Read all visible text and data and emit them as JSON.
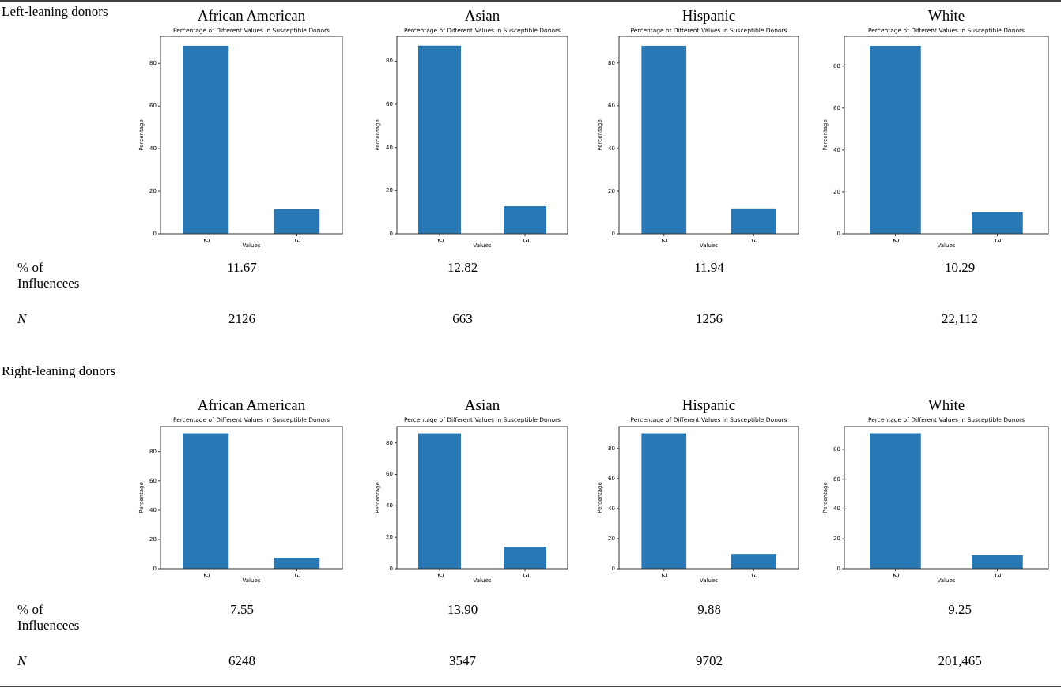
{
  "chart_data": [
    {
      "type": "other",
      "annotations": [
        "Left-leaning donors",
        "% of Influencees",
        "N",
        "Right-leaning donors",
        "% of Influencees",
        "N"
      ]
    },
    {
      "type": "bar",
      "title": "African American",
      "subtitle": "Percentage of Different Values in Susceptible Donors",
      "xlabel": "Values",
      "ylabel": "Percentage",
      "categories": [
        "2",
        "3"
      ],
      "values": [
        88.3,
        11.7
      ],
      "color": "#2878b5",
      "ylim": [
        0,
        92.7
      ],
      "yticks": [
        0,
        20,
        40,
        60,
        80
      ],
      "annotations": [
        "11.67",
        "2126"
      ]
    },
    {
      "type": "bar",
      "title": "Asian",
      "subtitle": "Percentage of Different Values in Susceptible Donors",
      "xlabel": "Values",
      "ylabel": "Percentage",
      "categories": [
        "2",
        "3"
      ],
      "values": [
        87.2,
        12.8
      ],
      "color": "#2878b5",
      "ylim": [
        0,
        91.5
      ],
      "yticks": [
        0,
        20,
        40,
        60,
        80
      ],
      "annotations": [
        "12.82",
        "663"
      ]
    },
    {
      "type": "bar",
      "title": "Hispanic",
      "subtitle": "Percentage of Different Values in Susceptible Donors",
      "xlabel": "Values",
      "ylabel": "Percentage",
      "categories": [
        "2",
        "3"
      ],
      "values": [
        88.1,
        11.9
      ],
      "color": "#2878b5",
      "ylim": [
        0,
        92.5
      ],
      "yticks": [
        0,
        20,
        40,
        60,
        80
      ],
      "annotations": [
        "11.94",
        "1256"
      ]
    },
    {
      "type": "bar",
      "title": "White",
      "subtitle": "Percentage of Different Values in Susceptible Donors",
      "xlabel": "Values",
      "ylabel": "Percentage",
      "categories": [
        "2",
        "3"
      ],
      "values": [
        89.7,
        10.3
      ],
      "color": "#2878b5",
      "ylim": [
        0,
        94.2
      ],
      "yticks": [
        0,
        20,
        40,
        60,
        80
      ],
      "annotations": [
        "10.29",
        "22,112"
      ]
    },
    {
      "type": "bar",
      "title": "African American",
      "subtitle": "Percentage of Different Values in Susceptible Donors",
      "xlabel": "Values",
      "ylabel": "Percentage",
      "categories": [
        "2",
        "3"
      ],
      "values": [
        92.5,
        7.5
      ],
      "color": "#2878b5",
      "ylim": [
        0,
        97.1
      ],
      "yticks": [
        0,
        20,
        40,
        60,
        80
      ],
      "annotations": [
        "7.55",
        "6248"
      ]
    },
    {
      "type": "bar",
      "title": "Asian",
      "subtitle": "Percentage of Different Values in Susceptible Donors",
      "xlabel": "Values",
      "ylabel": "Percentage",
      "categories": [
        "2",
        "3"
      ],
      "values": [
        86.1,
        13.9
      ],
      "color": "#2878b5",
      "ylim": [
        0,
        90.4
      ],
      "yticks": [
        0,
        20,
        40,
        60,
        80
      ],
      "annotations": [
        "13.90",
        "3547"
      ]
    },
    {
      "type": "bar",
      "title": "Hispanic",
      "subtitle": "Percentage of Different Values in Susceptible Donors",
      "xlabel": "Values",
      "ylabel": "Percentage",
      "categories": [
        "2",
        "3"
      ],
      "values": [
        90.1,
        9.9
      ],
      "color": "#2878b5",
      "ylim": [
        0,
        94.6
      ],
      "yticks": [
        0,
        20,
        40,
        60,
        80
      ],
      "annotations": [
        "9.88",
        "9702"
      ]
    },
    {
      "type": "bar",
      "title": "White",
      "subtitle": "Percentage of Different Values in Susceptible Donors",
      "xlabel": "Values",
      "ylabel": "Percentage",
      "categories": [
        "2",
        "3"
      ],
      "values": [
        90.8,
        9.2
      ],
      "color": "#2878b5",
      "ylim": [
        0,
        95.3
      ],
      "yticks": [
        0,
        20,
        40,
        60,
        80
      ],
      "annotations": [
        "9.25",
        "201,465"
      ]
    }
  ]
}
